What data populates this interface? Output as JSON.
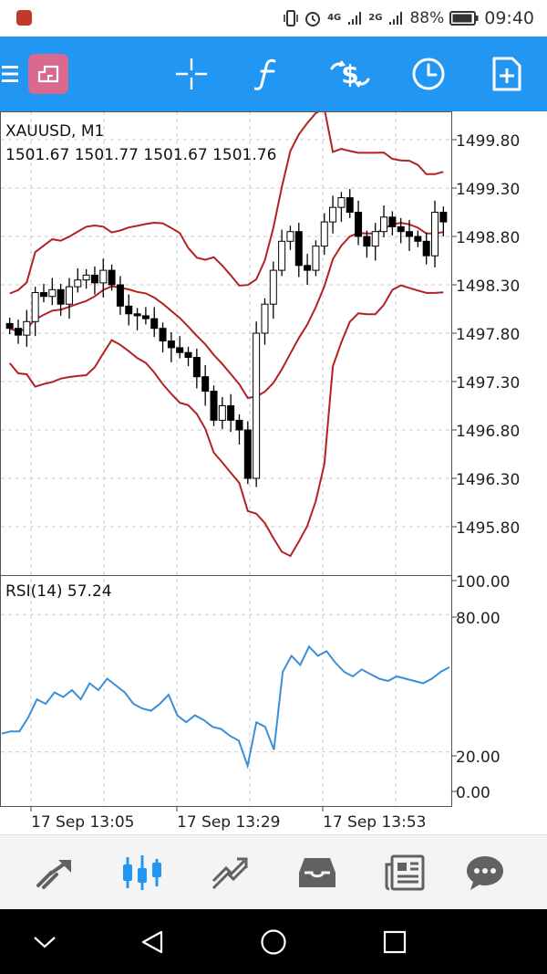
{
  "status_bar": {
    "battery": "88%",
    "time": "09:40",
    "network_a": "4G",
    "network_b": "2G"
  },
  "toolbar": {
    "icons": [
      "menu-icon",
      "chart-window-icon",
      "crosshair-icon",
      "indicator-icon",
      "trade-icon",
      "clock-icon",
      "add-icon"
    ]
  },
  "chart": {
    "symbol": "XAUUSD, M1",
    "ohlc": "1501.67 1501.77 1501.67 1501.76",
    "price_ticks": [
      "1499.80",
      "1499.30",
      "1498.80",
      "1498.30",
      "1497.80",
      "1497.30",
      "1496.80",
      "1496.30",
      "1495.80"
    ],
    "rsi_label": "RSI(14) 57.24",
    "rsi_ticks": [
      "100.00",
      "80.00",
      "20.00",
      "0.00"
    ],
    "time_labels": [
      "17 Sep 13:05",
      "17 Sep 13:29",
      "17 Sep 13:53"
    ],
    "colors": {
      "bands": "#b22222",
      "rsi": "#3a8fd8",
      "grid": "#c8c8c8",
      "candle": "#000000"
    }
  },
  "chart_data": {
    "type": "candlestick",
    "ylim": [
      1495.6,
      1500.1
    ],
    "candles_close": [
      1497.85,
      1497.78,
      1497.92,
      1498.22,
      1498.18,
      1498.25,
      1498.1,
      1498.28,
      1498.35,
      1498.4,
      1498.32,
      1498.45,
      1498.3,
      1498.08,
      1498.0,
      1497.98,
      1497.95,
      1497.85,
      1497.72,
      1497.65,
      1497.6,
      1497.55,
      1497.35,
      1497.2,
      1496.9,
      1497.05,
      1496.9,
      1496.8,
      1496.3,
      1497.8,
      1498.1,
      1498.45,
      1498.75,
      1498.85,
      1498.5,
      1498.45,
      1498.7,
      1498.95,
      1499.1,
      1499.2,
      1499.05,
      1498.8,
      1498.7,
      1498.85,
      1499.0,
      1498.9,
      1498.85,
      1498.8,
      1498.75,
      1498.6,
      1499.05,
      1498.95
    ],
    "rsi_values": [
      28,
      29,
      29,
      35,
      43,
      41,
      46,
      44,
      47,
      43,
      50,
      47,
      52,
      49,
      46,
      41,
      39,
      38,
      41,
      45,
      36,
      33,
      36,
      34,
      31,
      30,
      27,
      25,
      14,
      33,
      31,
      21,
      55,
      62,
      58,
      66,
      62,
      64,
      59,
      55,
      53,
      56,
      54,
      52,
      51,
      53,
      52,
      51,
      50,
      52,
      55,
      57
    ],
    "rsi_ylim": [
      0,
      100
    ]
  },
  "bottom_nav": {
    "icons": [
      "quotes-icon",
      "chart-icon",
      "trade-icon",
      "history-icon",
      "news-icon",
      "chat-icon"
    ]
  },
  "system_nav": {
    "icons": [
      "chevron-down-icon",
      "back-icon",
      "home-icon",
      "recents-icon"
    ]
  }
}
